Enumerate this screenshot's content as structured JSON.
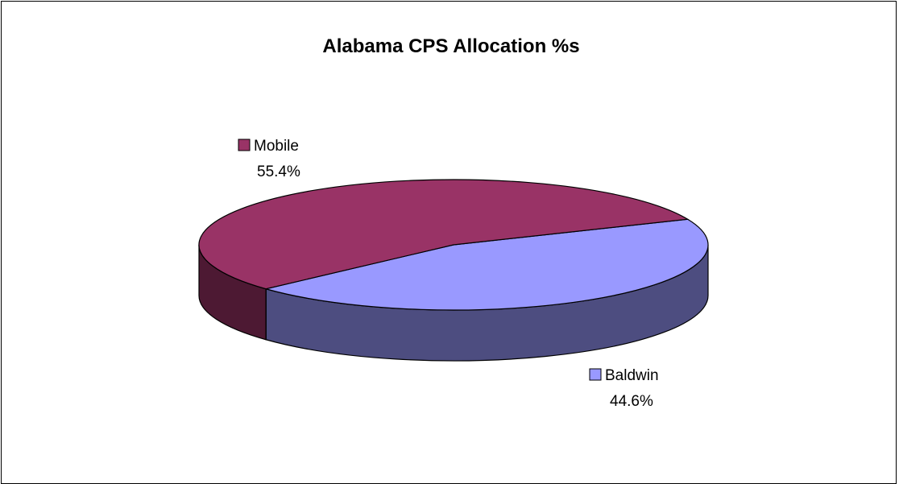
{
  "chart_data": {
    "type": "pie",
    "title": "Alabama CPS Allocation %s",
    "slices": [
      {
        "label": "Mobile",
        "value": 55.4,
        "value_label": "55.4%",
        "color": "#993366",
        "side_color": "#4d1933"
      },
      {
        "label": "Baldwin",
        "value": 44.6,
        "value_label": "44.6%",
        "color": "#9999ff",
        "side_color": "#4d4d80"
      }
    ],
    "three_d": true,
    "legend": "none",
    "data_labels": "category and percent with legend key"
  }
}
